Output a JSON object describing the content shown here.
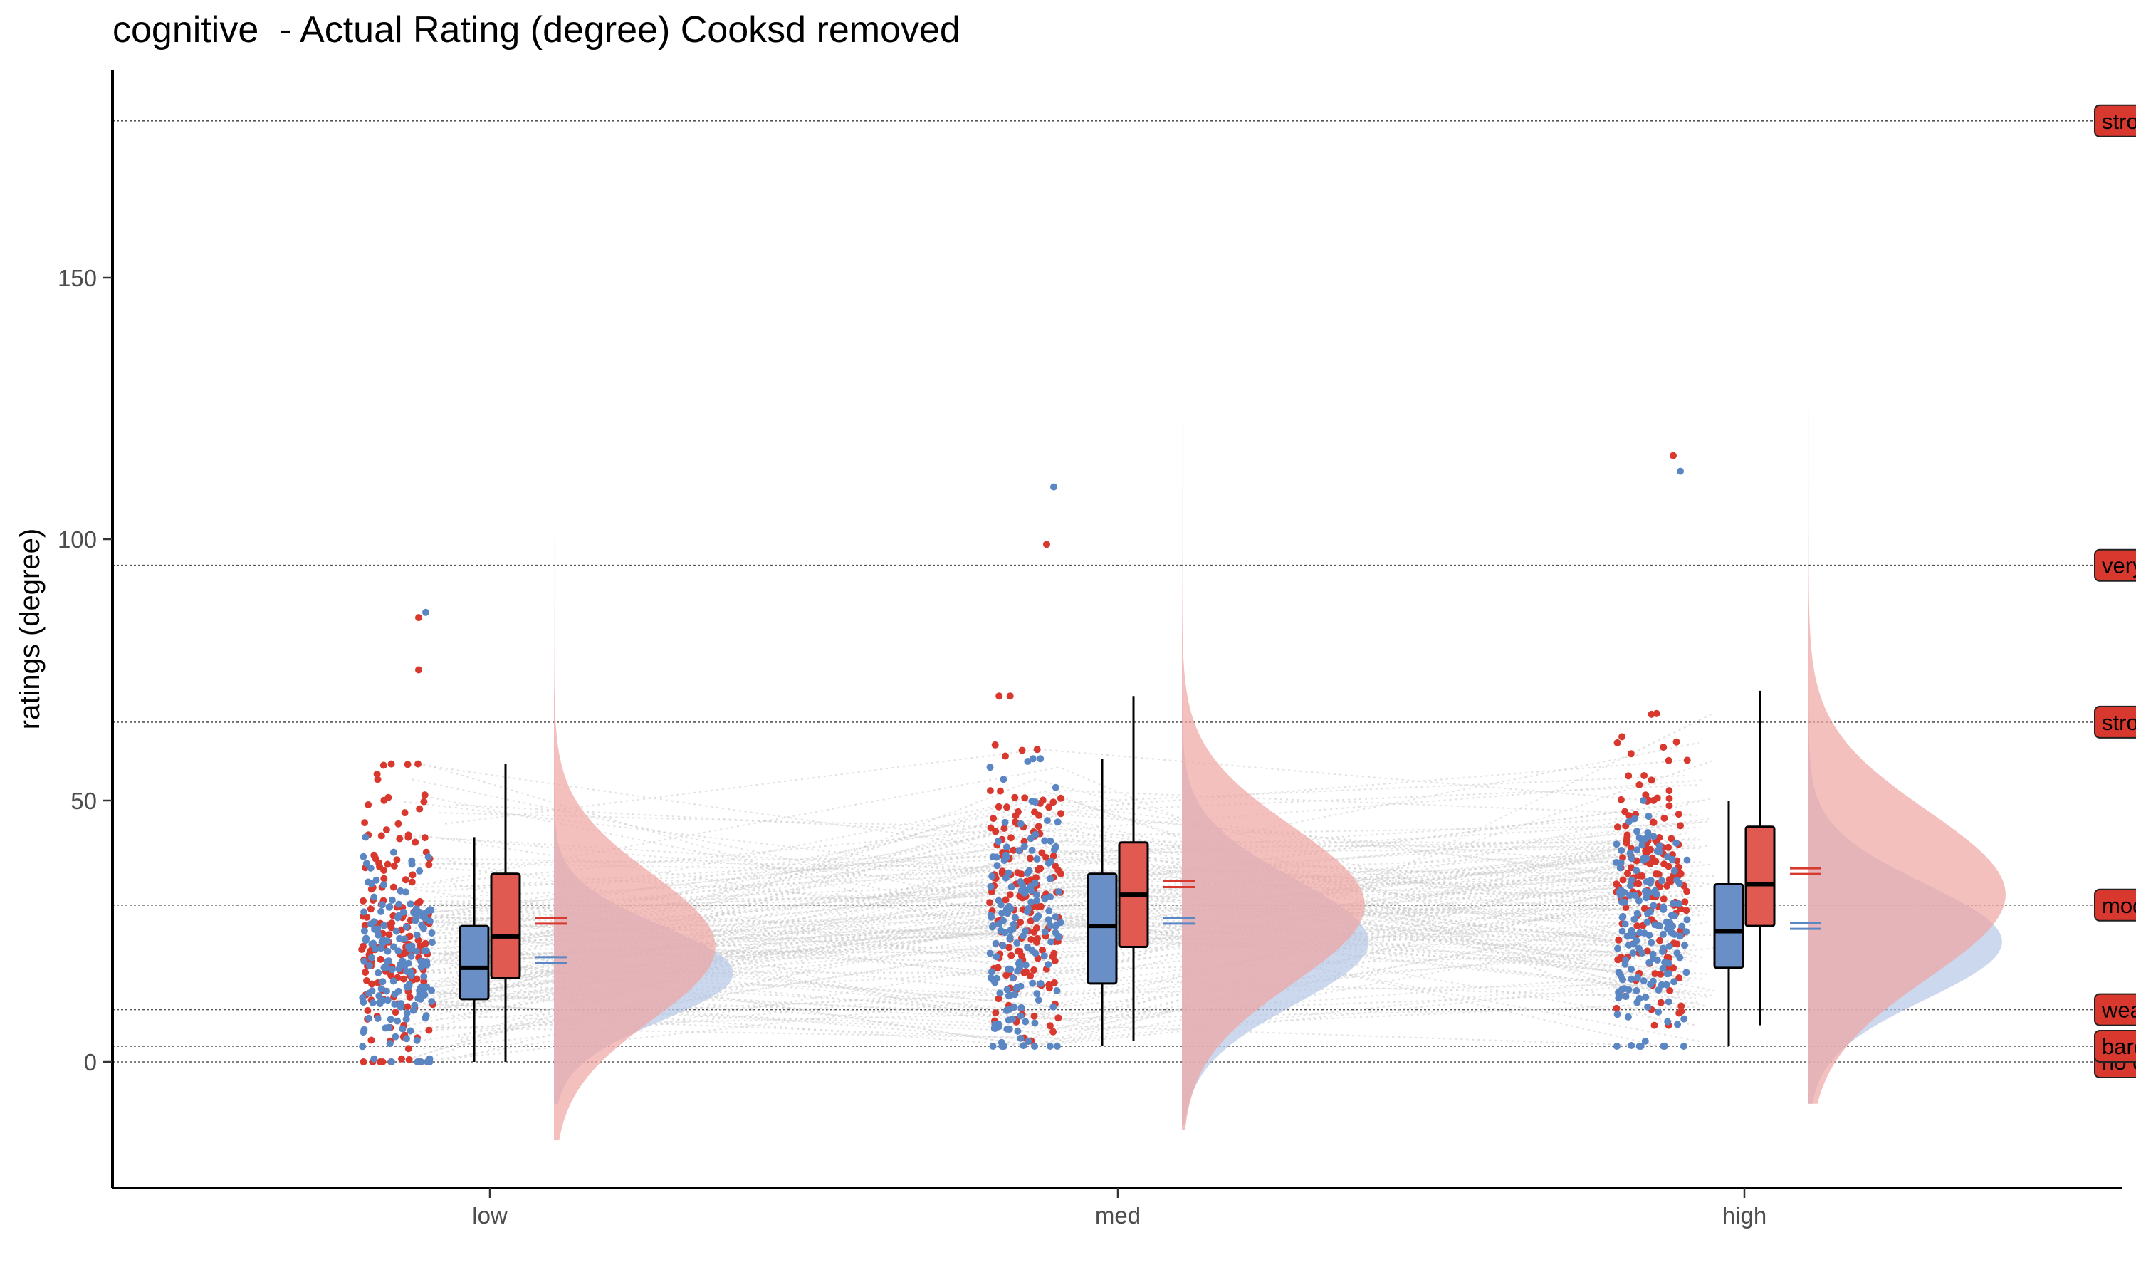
{
  "chart_data": {
    "type": "raincloud",
    "title": "cognitive  - Actual Rating (degree) Cooksd removed",
    "xlabel": "",
    "ylabel": "ratings (degree)",
    "ylim": [
      -24,
      190
    ],
    "y_ticks": [
      0,
      50,
      100,
      150
    ],
    "grid": false,
    "categories": [
      "low",
      "med",
      "high"
    ],
    "reference_lines": [
      {
        "value": 0,
        "label": "no cor"
      },
      {
        "value": 3,
        "label": "barely"
      },
      {
        "value": 10,
        "label": "weak"
      },
      {
        "value": 30,
        "label": "moder"
      },
      {
        "value": 65,
        "label": "strong"
      },
      {
        "value": 95,
        "label": "very st"
      },
      {
        "value": 180,
        "label": "strong"
      }
    ],
    "colors": {
      "blue": "#5b86c4",
      "red": "#d9382f",
      "blue_fill": "#6a8fc7",
      "red_fill": "#e05a52",
      "blue_density": "#b6c8e6",
      "red_density": "#f0a5a2",
      "ref_label_bg": "#d9382f"
    },
    "series": [
      {
        "color_key": "blue",
        "box": [
          {
            "min": 0,
            "q1": 12,
            "median": 18,
            "q3": 26,
            "max": 43
          },
          {
            "min": 3,
            "q1": 15,
            "median": 26,
            "q3": 36,
            "max": 58
          },
          {
            "min": 3,
            "q1": 18,
            "median": 25,
            "q3": 34,
            "max": 50
          }
        ],
        "mean": [
          19.5,
          27,
          26
        ],
        "density": [
          {
            "center": 17,
            "sd": 9,
            "scale": 250,
            "min": -8,
            "max": 70
          },
          {
            "center": 23,
            "sd": 12,
            "scale": 260,
            "min": -12,
            "max": 110
          },
          {
            "center": 23,
            "sd": 11,
            "scale": 270,
            "min": -8,
            "max": 110
          }
        ],
        "outliers": [
          [
            86
          ],
          [
            110
          ],
          [
            113
          ]
        ]
      },
      {
        "color_key": "red",
        "box": [
          {
            "min": 0,
            "q1": 16,
            "median": 24,
            "q3": 36,
            "max": 57
          },
          {
            "min": 4,
            "q1": 22,
            "median": 32,
            "q3": 42,
            "max": 70
          },
          {
            "min": 7,
            "q1": 26,
            "median": 34,
            "q3": 45,
            "max": 71
          }
        ],
        "mean": [
          27,
          34,
          36.5
        ],
        "density": [
          {
            "center": 22,
            "sd": 14,
            "scale": 225,
            "min": -15,
            "max": 100
          },
          {
            "center": 30,
            "sd": 15,
            "scale": 255,
            "min": -13,
            "max": 125
          },
          {
            "center": 32,
            "sd": 16,
            "scale": 275,
            "min": -8,
            "max": 130
          }
        ],
        "outliers": [
          [
            85,
            75
          ],
          [
            99
          ],
          [
            116
          ]
        ]
      }
    ]
  }
}
